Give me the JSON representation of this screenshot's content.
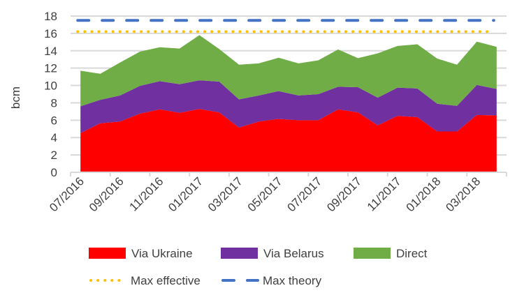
{
  "chart_data": {
    "type": "area",
    "stacked": true,
    "ylabel": "bcm",
    "xlabel": "",
    "ylim": [
      0,
      18
    ],
    "yticks": [
      0,
      2,
      4,
      6,
      8,
      10,
      12,
      14,
      16,
      18
    ],
    "grid": true,
    "legend_position": "bottom",
    "categories": [
      "07/2016",
      "08/2016",
      "09/2016",
      "10/2016",
      "11/2016",
      "12/2016",
      "01/2017",
      "02/2017",
      "03/2017",
      "04/2017",
      "05/2017",
      "06/2017",
      "07/2017",
      "08/2017",
      "09/2017",
      "10/2017",
      "11/2017",
      "12/2017",
      "01/2018",
      "02/2018",
      "03/2018",
      "04/2018"
    ],
    "tick_labels": [
      "07/2016",
      "09/2016",
      "11/2016",
      "01/2017",
      "03/2017",
      "05/2017",
      "07/2017",
      "09/2017",
      "11/2017",
      "01/2018",
      "03/2018"
    ],
    "series": [
      {
        "name": "Via Ukraine",
        "color": "#FF0000",
        "values": [
          4.5,
          5.65,
          5.85,
          6.75,
          7.25,
          6.85,
          7.3,
          6.9,
          5.15,
          5.85,
          6.15,
          6.0,
          6.0,
          7.25,
          6.9,
          5.4,
          6.5,
          6.35,
          4.7,
          4.7,
          6.6,
          6.55
        ]
      },
      {
        "name": "Via Belarus",
        "color": "#7030A0",
        "values": [
          3.1,
          2.7,
          3.0,
          3.2,
          3.25,
          3.3,
          3.3,
          3.55,
          3.25,
          3.0,
          3.2,
          2.85,
          3.0,
          2.6,
          2.9,
          3.2,
          3.25,
          3.3,
          3.2,
          2.95,
          3.45,
          3.05
        ]
      },
      {
        "name": "Direct",
        "color": "#70AD47",
        "values": [
          4.1,
          3.0,
          3.8,
          3.95,
          3.9,
          4.1,
          5.2,
          3.75,
          4.0,
          3.7,
          3.85,
          3.7,
          3.9,
          4.3,
          3.35,
          5.1,
          4.8,
          5.1,
          5.2,
          4.75,
          5.0,
          4.85
        ]
      }
    ],
    "lines": [
      {
        "name": "Max effective",
        "color": "#FFC000",
        "style": "dotted",
        "value": 16.2
      },
      {
        "name": "Max theory",
        "color": "#4472C4",
        "style": "dashed",
        "value": 17.5
      }
    ]
  }
}
